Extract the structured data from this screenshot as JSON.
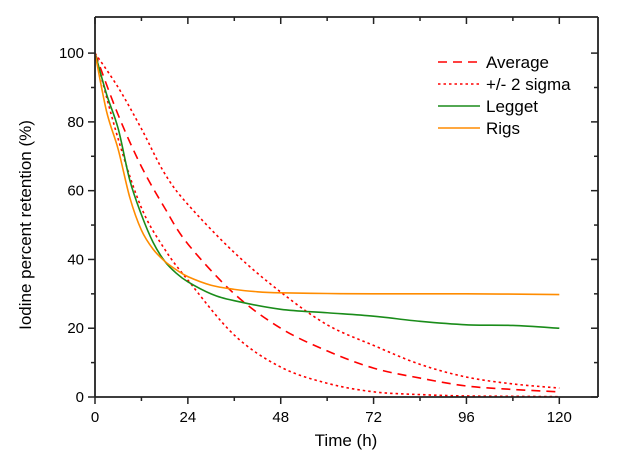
{
  "chart_data": {
    "type": "line",
    "title": "",
    "xlabel": "Time (h)",
    "ylabel": "Iodine percent retention (%)",
    "xlim": [
      0,
      130
    ],
    "ylim": [
      0,
      110.5
    ],
    "xticks": [
      0,
      24,
      48,
      72,
      96,
      120
    ],
    "xtick_labels": [
      "0",
      "24",
      "48",
      "72",
      "96",
      "120"
    ],
    "x_minor_ticks": [
      12,
      36,
      60,
      84,
      108
    ],
    "yticks": [
      0,
      20,
      40,
      60,
      80,
      100
    ],
    "ytick_labels": [
      "0",
      "20",
      "40",
      "60",
      "80",
      "100"
    ],
    "y_minor_ticks": [
      10,
      30,
      50,
      70,
      90
    ],
    "grid": false,
    "legend_position": "top-right",
    "series": [
      {
        "name": "Average",
        "style": "dashed",
        "color": "#ff0000",
        "x": [
          0,
          6,
          12,
          18,
          24,
          36,
          48,
          60,
          72,
          84,
          96,
          108,
          120
        ],
        "y": [
          100,
          82,
          67,
          55,
          44.5,
          30,
          20,
          13.4,
          8.4,
          5.5,
          3.2,
          2.2,
          1.5
        ]
      },
      {
        "name": "+/- 2 sigma (upper)",
        "legend_label": "+/- 2 sigma",
        "style": "dotted",
        "color": "#ff0000",
        "x": [
          0,
          6,
          12,
          18,
          24,
          36,
          48,
          60,
          72,
          84,
          96,
          108,
          120
        ],
        "y": [
          100,
          90,
          78,
          65,
          56,
          42,
          30.5,
          21,
          15,
          9.5,
          5.8,
          3.8,
          2.6
        ]
      },
      {
        "name": "+/- 2 sigma (lower)",
        "legend_label": "",
        "style": "dotted",
        "color": "#ff0000",
        "x": [
          0,
          6,
          12,
          18,
          24,
          36,
          48,
          60,
          72,
          84,
          96,
          108,
          120
        ],
        "y": [
          100,
          75,
          55,
          43,
          34,
          18,
          8.7,
          4,
          1.5,
          0.7,
          0.3,
          0.2,
          0.1
        ]
      },
      {
        "name": "Legget",
        "style": "solid",
        "color": "#1a8c1a",
        "x": [
          0,
          3,
          6,
          9,
          12,
          15,
          18,
          21,
          24,
          30,
          36,
          48,
          60,
          72,
          84,
          96,
          108,
          120
        ],
        "y": [
          100,
          88,
          78,
          63,
          53,
          45,
          39.5,
          36,
          33.5,
          30,
          28,
          25.5,
          24.5,
          23.5,
          22,
          21,
          20.8,
          20
        ]
      },
      {
        "name": "Rigs",
        "style": "solid",
        "color": "#ff8c00",
        "x": [
          0,
          3,
          6,
          9,
          12,
          15,
          18,
          21,
          24,
          30,
          36,
          42,
          48,
          60,
          72,
          96,
          120
        ],
        "y": [
          100,
          83,
          72,
          58,
          48.5,
          43,
          39.5,
          37,
          35,
          32.5,
          31.3,
          30.6,
          30.3,
          30.1,
          30,
          30,
          29.8
        ]
      }
    ],
    "legend": [
      {
        "label": "Average",
        "style": "dashed",
        "color": "#ff0000"
      },
      {
        "label": "+/- 2 sigma",
        "style": "dotted",
        "color": "#ff0000"
      },
      {
        "label": "Legget",
        "style": "solid",
        "color": "#1a8c1a"
      },
      {
        "label": "Rigs",
        "style": "solid",
        "color": "#ff8c00"
      }
    ]
  }
}
